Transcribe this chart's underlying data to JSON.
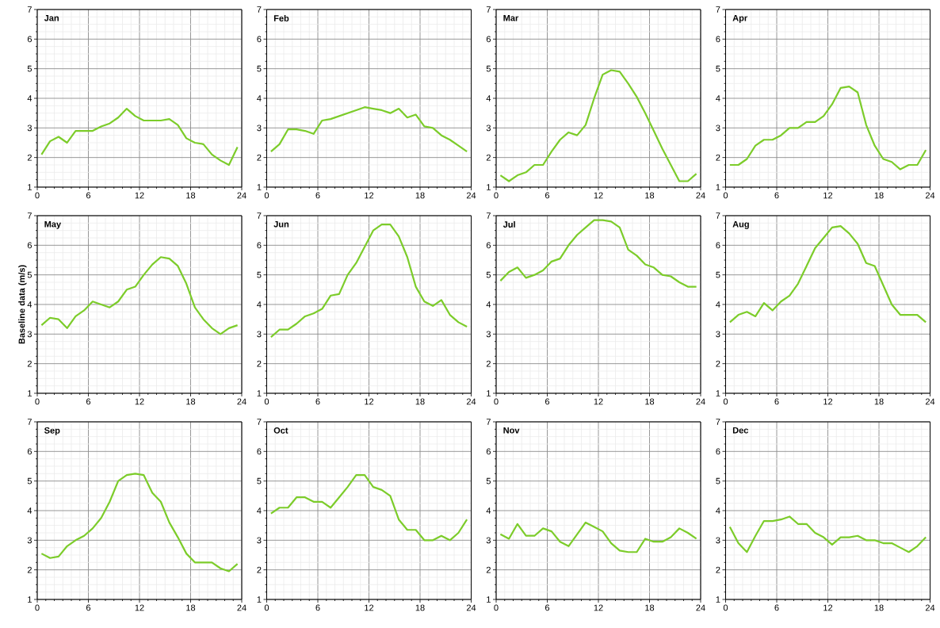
{
  "chart_data": [
    {
      "type": "line",
      "title": "Jan",
      "x": [
        0.5,
        1.5,
        2.5,
        3.5,
        4.5,
        5.5,
        6.5,
        7.5,
        8.5,
        9.5,
        10.5,
        11.5,
        12.5,
        13.5,
        14.5,
        15.5,
        16.5,
        17.5,
        18.5,
        19.5,
        20.5,
        21.5,
        22.5,
        23.5
      ],
      "values": [
        2.1,
        2.55,
        2.7,
        2.5,
        2.9,
        2.9,
        2.9,
        3.05,
        3.15,
        3.35,
        3.65,
        3.4,
        3.25,
        3.25,
        3.25,
        3.3,
        3.1,
        2.65,
        2.5,
        2.45,
        2.1,
        1.9,
        1.75,
        2.35
      ],
      "color": "#7ccc2a",
      "xlim": [
        0,
        24
      ],
      "ylim": [
        1,
        7
      ],
      "xticks": [
        0,
        6,
        12,
        18,
        24
      ],
      "yticks": [
        1,
        2,
        3,
        4,
        5,
        6,
        7
      ],
      "grid": true
    },
    {
      "type": "line",
      "title": "Feb",
      "x": [
        0.5,
        1.5,
        2.5,
        3.5,
        4.5,
        5.5,
        6.5,
        7.5,
        8.5,
        9.5,
        10.5,
        11.5,
        12.5,
        13.5,
        14.5,
        15.5,
        16.5,
        17.5,
        18.5,
        19.5,
        20.5,
        21.5,
        22.5,
        23.5
      ],
      "values": [
        2.2,
        2.45,
        2.95,
        2.95,
        2.9,
        2.8,
        3.25,
        3.3,
        3.4,
        3.5,
        3.6,
        3.7,
        3.65,
        3.6,
        3.5,
        3.65,
        3.35,
        3.45,
        3.05,
        3.0,
        2.75,
        2.6,
        2.4,
        2.2
      ],
      "color": "#7ccc2a",
      "xlim": [
        0,
        24
      ],
      "ylim": [
        1,
        7
      ],
      "xticks": [
        0,
        6,
        12,
        18,
        24
      ],
      "yticks": [
        1,
        2,
        3,
        4,
        5,
        6,
        7
      ],
      "grid": true
    },
    {
      "type": "line",
      "title": "Mar",
      "x": [
        0.5,
        1.5,
        2.5,
        3.5,
        4.5,
        5.5,
        6.5,
        7.5,
        8.5,
        9.5,
        10.5,
        11.5,
        12.5,
        13.5,
        14.5,
        15.5,
        16.5,
        17.5,
        18.5,
        19.5,
        20.5,
        21.5,
        22.5,
        23.5
      ],
      "values": [
        1.4,
        1.2,
        1.4,
        1.5,
        1.75,
        1.75,
        2.2,
        2.6,
        2.85,
        2.75,
        3.1,
        4.0,
        4.8,
        4.95,
        4.9,
        4.5,
        4.05,
        3.5,
        2.9,
        2.3,
        1.75,
        1.2,
        1.2,
        1.45
      ],
      "color": "#7ccc2a",
      "xlim": [
        0,
        24
      ],
      "ylim": [
        1,
        7
      ],
      "xticks": [
        0,
        6,
        12,
        18,
        24
      ],
      "yticks": [
        1,
        2,
        3,
        4,
        5,
        6,
        7
      ],
      "grid": true
    },
    {
      "type": "line",
      "title": "Apr",
      "x": [
        0.5,
        1.5,
        2.5,
        3.5,
        4.5,
        5.5,
        6.5,
        7.5,
        8.5,
        9.5,
        10.5,
        11.5,
        12.5,
        13.5,
        14.5,
        15.5,
        16.5,
        17.5,
        18.5,
        19.5,
        20.5,
        21.5,
        22.5,
        23.5
      ],
      "values": [
        1.75,
        1.75,
        1.95,
        2.4,
        2.6,
        2.6,
        2.75,
        3.0,
        3.0,
        3.2,
        3.2,
        3.4,
        3.8,
        4.35,
        4.4,
        4.2,
        3.1,
        2.4,
        1.95,
        1.85,
        1.6,
        1.75,
        1.75,
        2.25
      ],
      "color": "#7ccc2a",
      "xlim": [
        0,
        24
      ],
      "ylim": [
        1,
        7
      ],
      "xticks": [
        0,
        6,
        12,
        18,
        24
      ],
      "yticks": [
        1,
        2,
        3,
        4,
        5,
        6,
        7
      ],
      "grid": true
    },
    {
      "type": "line",
      "title": "May",
      "ylabel": "Baseline data (m/s)",
      "x": [
        0.5,
        1.5,
        2.5,
        3.5,
        4.5,
        5.5,
        6.5,
        7.5,
        8.5,
        9.5,
        10.5,
        11.5,
        12.5,
        13.5,
        14.5,
        15.5,
        16.5,
        17.5,
        18.5,
        19.5,
        20.5,
        21.5,
        22.5,
        23.5
      ],
      "values": [
        3.3,
        3.55,
        3.5,
        3.2,
        3.6,
        3.8,
        4.1,
        4.0,
        3.9,
        4.1,
        4.5,
        4.6,
        5.0,
        5.35,
        5.6,
        5.55,
        5.3,
        4.7,
        3.9,
        3.5,
        3.2,
        3.0,
        3.2,
        3.3
      ],
      "color": "#7ccc2a",
      "xlim": [
        0,
        24
      ],
      "ylim": [
        1,
        7
      ],
      "xticks": [
        0,
        6,
        12,
        18,
        24
      ],
      "yticks": [
        1,
        2,
        3,
        4,
        5,
        6,
        7
      ],
      "grid": true
    },
    {
      "type": "line",
      "title": "Jun",
      "x": [
        0.5,
        1.5,
        2.5,
        3.5,
        4.5,
        5.5,
        6.5,
        7.5,
        8.5,
        9.5,
        10.5,
        11.5,
        12.5,
        13.5,
        14.5,
        15.5,
        16.5,
        17.5,
        18.5,
        19.5,
        20.5,
        21.5,
        22.5,
        23.5
      ],
      "values": [
        2.9,
        3.15,
        3.15,
        3.35,
        3.6,
        3.7,
        3.85,
        4.3,
        4.35,
        5.0,
        5.4,
        5.95,
        6.5,
        6.7,
        6.7,
        6.3,
        5.6,
        4.6,
        4.1,
        3.95,
        4.15,
        3.65,
        3.4,
        3.25
      ],
      "color": "#7ccc2a",
      "xlim": [
        0,
        24
      ],
      "ylim": [
        1,
        7
      ],
      "xticks": [
        0,
        6,
        12,
        18,
        24
      ],
      "yticks": [
        1,
        2,
        3,
        4,
        5,
        6,
        7
      ],
      "grid": true
    },
    {
      "type": "line",
      "title": "Jul",
      "x": [
        0.5,
        1.5,
        2.5,
        3.5,
        4.5,
        5.5,
        6.5,
        7.5,
        8.5,
        9.5,
        10.5,
        11.5,
        12.5,
        13.5,
        14.5,
        15.5,
        16.5,
        17.5,
        18.5,
        19.5,
        20.5,
        21.5,
        22.5,
        23.5
      ],
      "values": [
        4.8,
        5.1,
        5.25,
        4.9,
        5.0,
        5.15,
        5.45,
        5.55,
        6.0,
        6.35,
        6.6,
        6.85,
        6.85,
        6.8,
        6.6,
        5.85,
        5.65,
        5.35,
        5.25,
        5.0,
        4.95,
        4.75,
        4.6,
        4.6
      ],
      "color": "#7ccc2a",
      "xlim": [
        0,
        24
      ],
      "ylim": [
        1,
        7
      ],
      "xticks": [
        0,
        6,
        12,
        18,
        24
      ],
      "yticks": [
        1,
        2,
        3,
        4,
        5,
        6,
        7
      ],
      "grid": true
    },
    {
      "type": "line",
      "title": "Aug",
      "x": [
        0.5,
        1.5,
        2.5,
        3.5,
        4.5,
        5.5,
        6.5,
        7.5,
        8.5,
        9.5,
        10.5,
        11.5,
        12.5,
        13.5,
        14.5,
        15.5,
        16.5,
        17.5,
        18.5,
        19.5,
        20.5,
        21.5,
        22.5,
        23.5
      ],
      "values": [
        3.4,
        3.65,
        3.75,
        3.6,
        4.05,
        3.8,
        4.1,
        4.3,
        4.7,
        5.3,
        5.9,
        6.25,
        6.6,
        6.65,
        6.4,
        6.05,
        5.4,
        5.3,
        4.65,
        4.0,
        3.65,
        3.65,
        3.65,
        3.4
      ],
      "color": "#7ccc2a",
      "xlim": [
        0,
        24
      ],
      "ylim": [
        1,
        7
      ],
      "xticks": [
        0,
        6,
        12,
        18,
        24
      ],
      "yticks": [
        1,
        2,
        3,
        4,
        5,
        6,
        7
      ],
      "grid": true
    },
    {
      "type": "line",
      "title": "Sep",
      "x": [
        0.5,
        1.5,
        2.5,
        3.5,
        4.5,
        5.5,
        6.5,
        7.5,
        8.5,
        9.5,
        10.5,
        11.5,
        12.5,
        13.5,
        14.5,
        15.5,
        16.5,
        17.5,
        18.5,
        19.5,
        20.5,
        21.5,
        22.5,
        23.5
      ],
      "values": [
        2.55,
        2.4,
        2.45,
        2.8,
        3.0,
        3.15,
        3.4,
        3.75,
        4.3,
        5.0,
        5.2,
        5.25,
        5.2,
        4.6,
        4.3,
        3.6,
        3.1,
        2.55,
        2.25,
        2.25,
        2.25,
        2.05,
        1.95,
        2.2
      ],
      "color": "#7ccc2a",
      "xlim": [
        0,
        24
      ],
      "ylim": [
        1,
        7
      ],
      "xticks": [
        0,
        6,
        12,
        18,
        24
      ],
      "yticks": [
        1,
        2,
        3,
        4,
        5,
        6,
        7
      ],
      "grid": true
    },
    {
      "type": "line",
      "title": "Oct",
      "x": [
        0.5,
        1.5,
        2.5,
        3.5,
        4.5,
        5.5,
        6.5,
        7.5,
        8.5,
        9.5,
        10.5,
        11.5,
        12.5,
        13.5,
        14.5,
        15.5,
        16.5,
        17.5,
        18.5,
        19.5,
        20.5,
        21.5,
        22.5,
        23.5
      ],
      "values": [
        3.9,
        4.1,
        4.1,
        4.45,
        4.45,
        4.3,
        4.3,
        4.1,
        4.45,
        4.8,
        5.2,
        5.2,
        4.8,
        4.7,
        4.5,
        3.7,
        3.35,
        3.35,
        3.0,
        3.0,
        3.15,
        3.0,
        3.25,
        3.7
      ],
      "color": "#7ccc2a",
      "xlim": [
        0,
        24
      ],
      "ylim": [
        1,
        7
      ],
      "xticks": [
        0,
        6,
        12,
        18,
        24
      ],
      "yticks": [
        1,
        2,
        3,
        4,
        5,
        6,
        7
      ],
      "grid": true
    },
    {
      "type": "line",
      "title": "Nov",
      "x": [
        0.5,
        1.5,
        2.5,
        3.5,
        4.5,
        5.5,
        6.5,
        7.5,
        8.5,
        9.5,
        10.5,
        11.5,
        12.5,
        13.5,
        14.5,
        15.5,
        16.5,
        17.5,
        18.5,
        19.5,
        20.5,
        21.5,
        22.5,
        23.5
      ],
      "values": [
        3.2,
        3.05,
        3.55,
        3.15,
        3.15,
        3.4,
        3.3,
        2.95,
        2.8,
        3.2,
        3.6,
        3.45,
        3.3,
        2.9,
        2.65,
        2.6,
        2.6,
        3.05,
        2.95,
        2.95,
        3.1,
        3.4,
        3.25,
        3.05
      ],
      "color": "#7ccc2a",
      "xlim": [
        0,
        24
      ],
      "ylim": [
        1,
        7
      ],
      "xticks": [
        0,
        6,
        12,
        18,
        24
      ],
      "yticks": [
        1,
        2,
        3,
        4,
        5,
        6,
        7
      ],
      "grid": true
    },
    {
      "type": "line",
      "title": "Dec",
      "x": [
        0.5,
        1.5,
        2.5,
        3.5,
        4.5,
        5.5,
        6.5,
        7.5,
        8.5,
        9.5,
        10.5,
        11.5,
        12.5,
        13.5,
        14.5,
        15.5,
        16.5,
        17.5,
        18.5,
        19.5,
        20.5,
        21.5,
        22.5,
        23.5
      ],
      "values": [
        3.45,
        2.9,
        2.6,
        3.15,
        3.65,
        3.65,
        3.7,
        3.8,
        3.55,
        3.55,
        3.25,
        3.1,
        2.85,
        3.1,
        3.1,
        3.15,
        3.0,
        3.0,
        2.9,
        2.9,
        2.75,
        2.6,
        2.8,
        3.1
      ],
      "color": "#7ccc2a",
      "xlim": [
        0,
        24
      ],
      "ylim": [
        1,
        7
      ],
      "xticks": [
        0,
        6,
        12,
        18,
        24
      ],
      "yticks": [
        1,
        2,
        3,
        4,
        5,
        6,
        7
      ],
      "grid": true
    }
  ]
}
